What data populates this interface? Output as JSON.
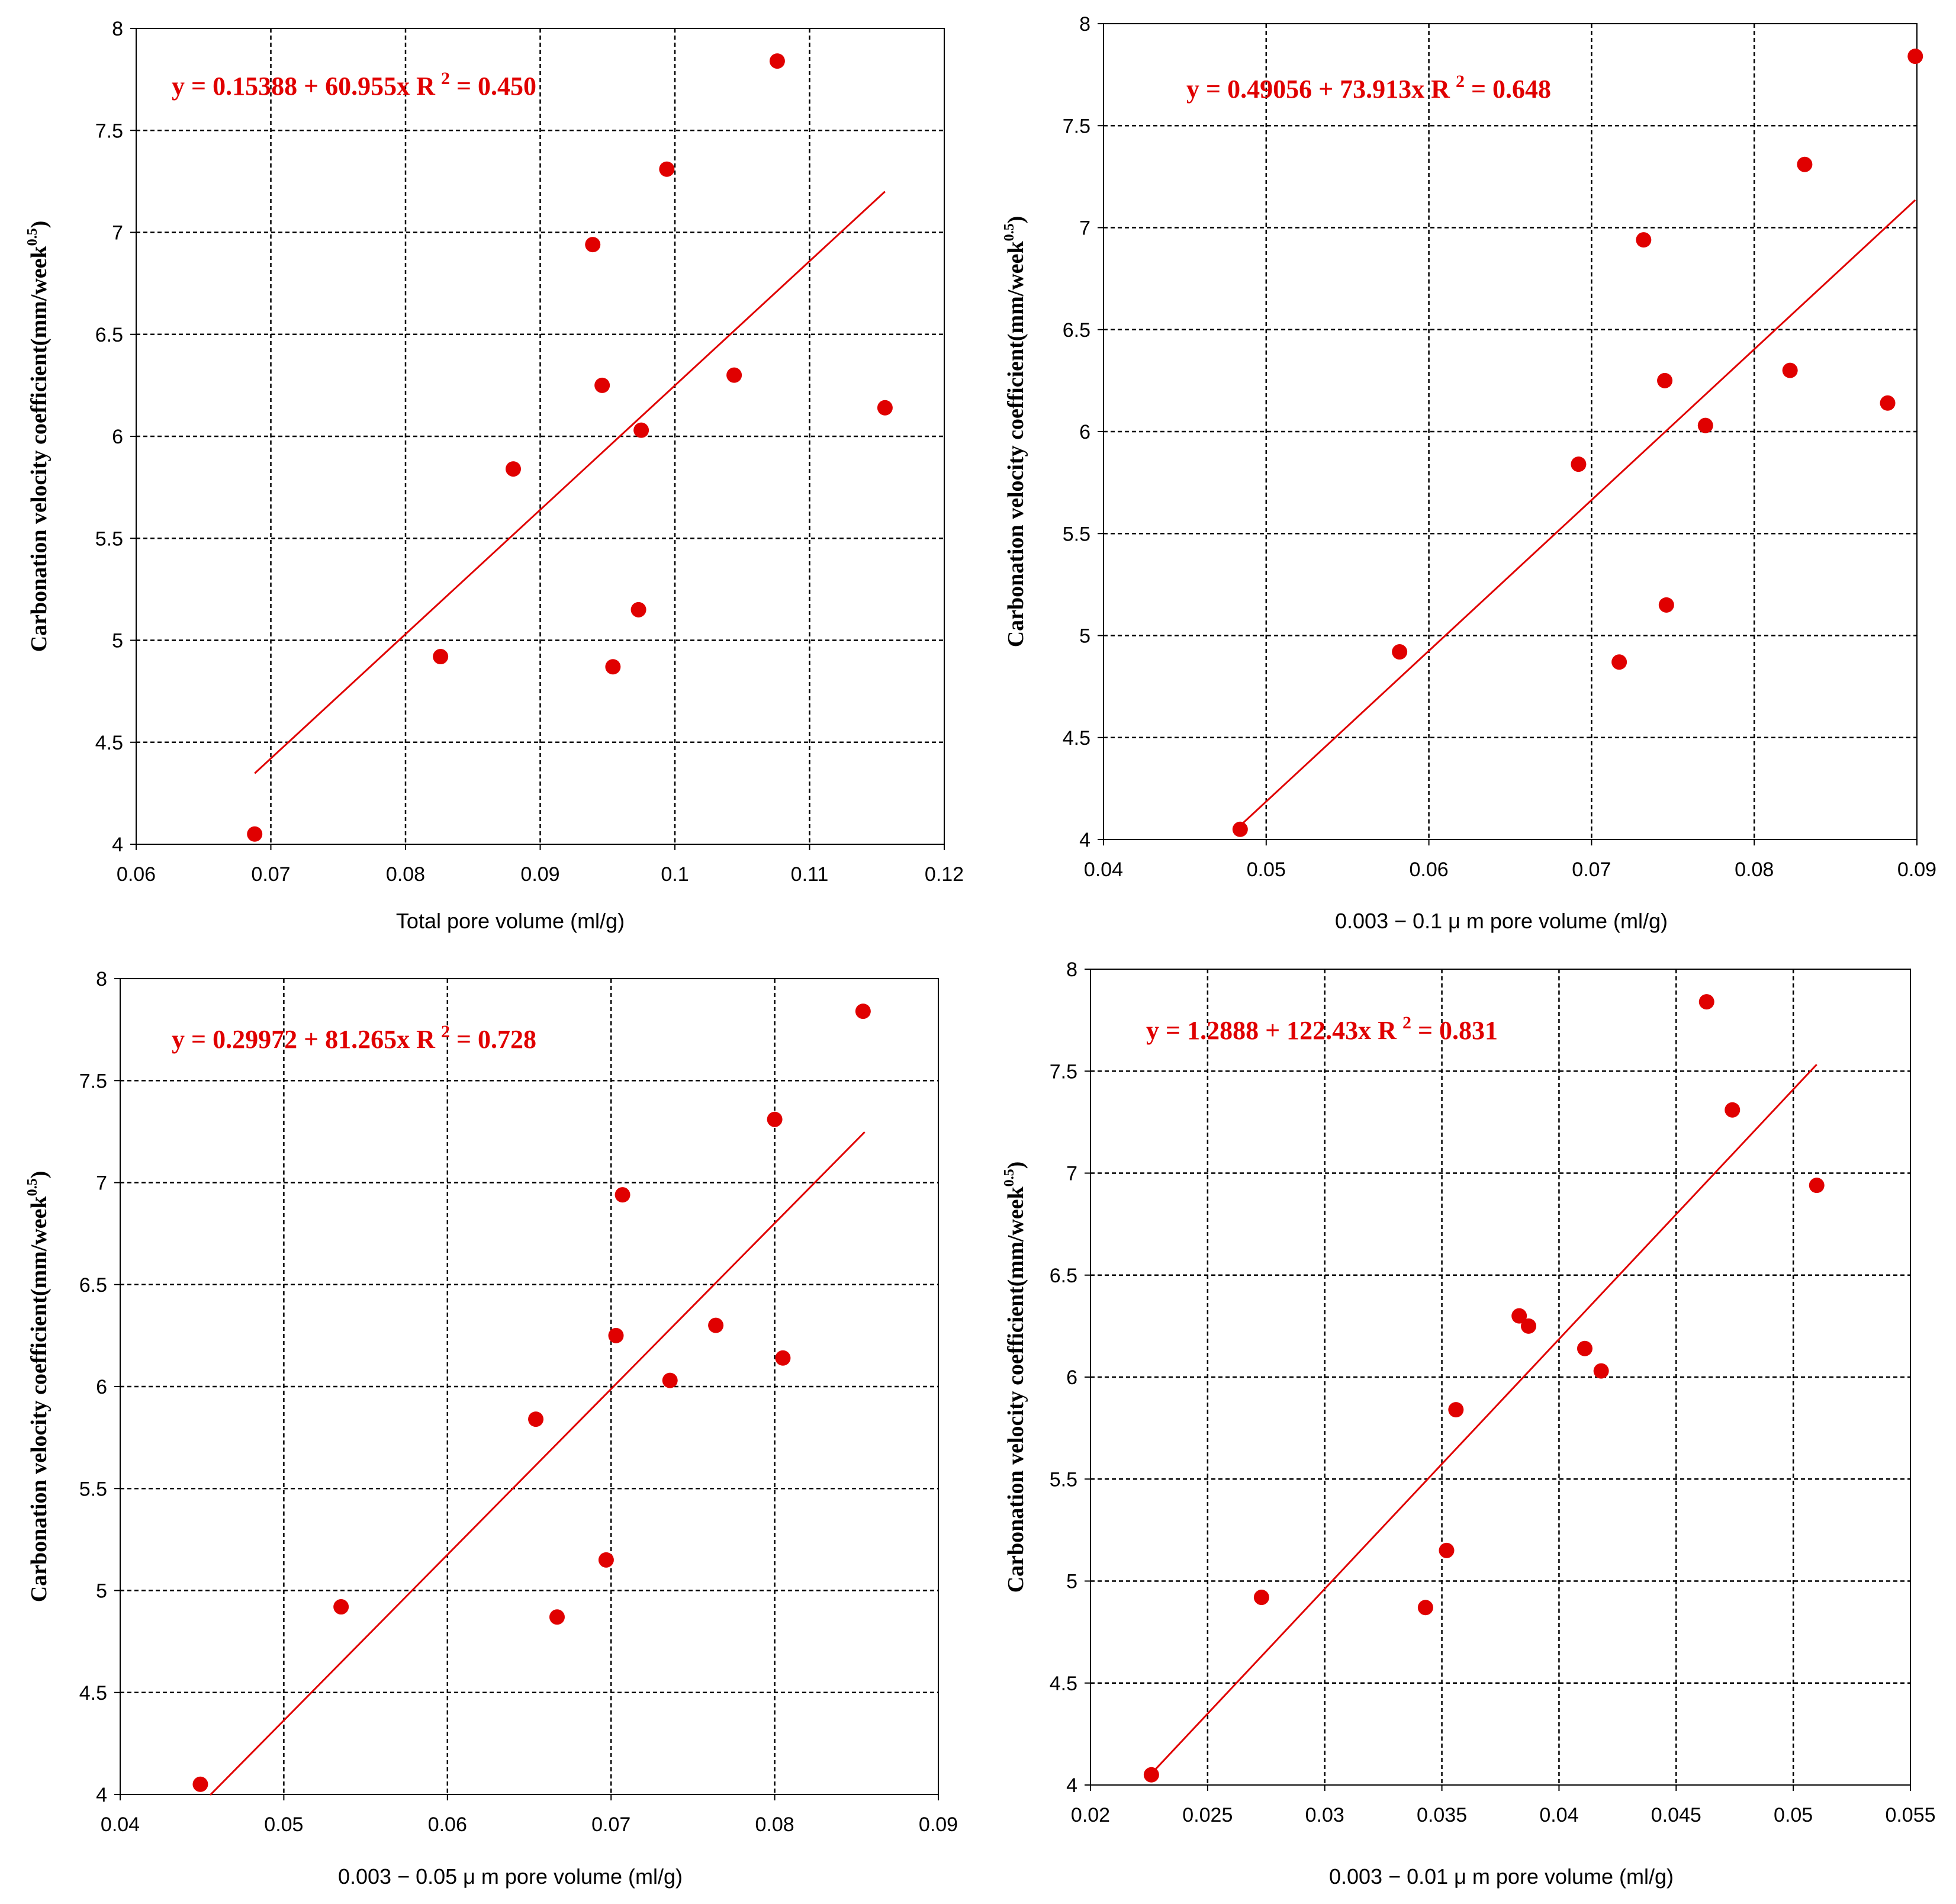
{
  "chart_data": [
    {
      "type": "scatter",
      "title": "",
      "equation_text": "y = 0.15388 + 60.955x",
      "r2_label": "R",
      "r2_power": "2",
      "r2_value": " = 0.450",
      "xlabel": "Total pore volume (ml/g)",
      "ylabel_main": "Carbonation velocity coefficient(mm/week",
      "ylabel_power": "0.5",
      "ylabel_close": ")",
      "xlim": [
        0.06,
        0.12
      ],
      "ylim": [
        4,
        8
      ],
      "xticks": [
        "0.06",
        "0.07",
        "0.08",
        "0.09",
        "0.1",
        "0.11",
        "0.12"
      ],
      "yticks": [
        "4",
        "4.5",
        "5",
        "5.5",
        "6",
        "6.5",
        "7",
        "7.5",
        "8"
      ],
      "grid": true,
      "intercept": 0.15388,
      "slope": 60.955,
      "fit_x_range": [
        0.0688,
        0.1156
      ],
      "points": [
        {
          "x": 0.0688,
          "y": 4.05
        },
        {
          "x": 0.0826,
          "y": 4.92
        },
        {
          "x": 0.088,
          "y": 5.84
        },
        {
          "x": 0.0939,
          "y": 6.94
        },
        {
          "x": 0.0946,
          "y": 6.25
        },
        {
          "x": 0.0954,
          "y": 4.87
        },
        {
          "x": 0.0973,
          "y": 5.15
        },
        {
          "x": 0.0975,
          "y": 6.03
        },
        {
          "x": 0.0994,
          "y": 7.31
        },
        {
          "x": 0.1044,
          "y": 6.3
        },
        {
          "x": 0.1076,
          "y": 7.84
        },
        {
          "x": 0.1156,
          "y": 6.14
        }
      ],
      "color": "#e00000"
    },
    {
      "type": "scatter",
      "title": "",
      "equation_text": "y = 0.49056 + 73.913x",
      "r2_label": "R",
      "r2_power": "2",
      "r2_value": " = 0.648",
      "xlabel": "0.003 − 0.1 μ m pore volume (ml/g)",
      "ylabel_main": "Carbonation velocity coefficient(mm/week",
      "ylabel_power": "0.5",
      "ylabel_close": ")",
      "xlim": [
        0.04,
        0.09
      ],
      "ylim": [
        4,
        8
      ],
      "xticks": [
        "0.04",
        "0.05",
        "0.06",
        "0.07",
        "0.08",
        "0.09"
      ],
      "yticks": [
        "4",
        "4.5",
        "5",
        "5.5",
        "6",
        "6.5",
        "7",
        "7.5",
        "8"
      ],
      "grid": true,
      "intercept": 0.49056,
      "slope": 73.913,
      "fit_x_range": [
        0.0484,
        0.0899
      ],
      "points": [
        {
          "x": 0.0484,
          "y": 4.05
        },
        {
          "x": 0.0582,
          "y": 4.92
        },
        {
          "x": 0.0692,
          "y": 5.84
        },
        {
          "x": 0.0717,
          "y": 4.87
        },
        {
          "x": 0.0732,
          "y": 6.94
        },
        {
          "x": 0.0745,
          "y": 6.25
        },
        {
          "x": 0.0746,
          "y": 5.15
        },
        {
          "x": 0.077,
          "y": 6.03
        },
        {
          "x": 0.0822,
          "y": 6.3
        },
        {
          "x": 0.0831,
          "y": 7.31
        },
        {
          "x": 0.0882,
          "y": 6.14
        },
        {
          "x": 0.0899,
          "y": 7.84
        }
      ],
      "color": "#e00000"
    },
    {
      "type": "scatter",
      "title": "",
      "equation_text": "y = 0.29972 + 81.265x",
      "r2_label": "R",
      "r2_power": "2",
      "r2_value": " = 0.728",
      "xlabel": "0.003 − 0.05 μ m pore volume (ml/g)",
      "ylabel_main": "Carbonation velocity coefficient(mm/week",
      "ylabel_power": "0.5",
      "ylabel_close": ")",
      "xlim": [
        0.04,
        0.09
      ],
      "ylim": [
        4,
        8
      ],
      "xticks": [
        "0.04",
        "0.05",
        "0.06",
        "0.07",
        "0.08",
        "0.09"
      ],
      "yticks": [
        "4",
        "4.5",
        "5",
        "5.5",
        "6",
        "6.5",
        "7",
        "7.5",
        "8"
      ],
      "grid": true,
      "intercept": 0.29972,
      "slope": 81.265,
      "fit_x_range": [
        0.0455,
        0.0855
      ],
      "points": [
        {
          "x": 0.0449,
          "y": 4.05
        },
        {
          "x": 0.0535,
          "y": 4.92
        },
        {
          "x": 0.0654,
          "y": 5.84
        },
        {
          "x": 0.0667,
          "y": 4.87
        },
        {
          "x": 0.0697,
          "y": 5.15
        },
        {
          "x": 0.0703,
          "y": 6.25
        },
        {
          "x": 0.0707,
          "y": 6.94
        },
        {
          "x": 0.0736,
          "y": 6.03
        },
        {
          "x": 0.0764,
          "y": 6.3
        },
        {
          "x": 0.08,
          "y": 7.31
        },
        {
          "x": 0.0805,
          "y": 6.14
        },
        {
          "x": 0.0854,
          "y": 7.84
        }
      ],
      "color": "#e00000"
    },
    {
      "type": "scatter",
      "title": "",
      "equation_text": "y = 1.2888 + 122.43x",
      "r2_label": "R",
      "r2_power": "2",
      "r2_value": " = 0.831",
      "xlabel": "0.003 − 0.01 μ m pore volume (ml/g)",
      "ylabel_main": "Carbonation velocity coefficient(mm/week",
      "ylabel_power": "0.5",
      "ylabel_close": ")",
      "xlim": [
        0.02,
        0.055
      ],
      "ylim": [
        4,
        8
      ],
      "xticks": [
        "0.02",
        "0.025",
        "0.03",
        "0.035",
        "0.04",
        "0.045",
        "0.05",
        "0.055"
      ],
      "yticks": [
        "4",
        "4.5",
        "5",
        "5.5",
        "6",
        "6.5",
        "7",
        "7.5",
        "8"
      ],
      "grid": true,
      "intercept": 1.2888,
      "slope": 122.43,
      "fit_x_range": [
        0.0226,
        0.051
      ],
      "points": [
        {
          "x": 0.0226,
          "y": 4.05
        },
        {
          "x": 0.0273,
          "y": 4.92
        },
        {
          "x": 0.0343,
          "y": 4.87
        },
        {
          "x": 0.0352,
          "y": 5.15
        },
        {
          "x": 0.0356,
          "y": 5.84
        },
        {
          "x": 0.0383,
          "y": 6.3
        },
        {
          "x": 0.0387,
          "y": 6.25
        },
        {
          "x": 0.0411,
          "y": 6.14
        },
        {
          "x": 0.0418,
          "y": 6.03
        },
        {
          "x": 0.0463,
          "y": 7.84
        },
        {
          "x": 0.0474,
          "y": 7.31
        },
        {
          "x": 0.051,
          "y": 6.94
        }
      ],
      "color": "#e00000"
    }
  ]
}
